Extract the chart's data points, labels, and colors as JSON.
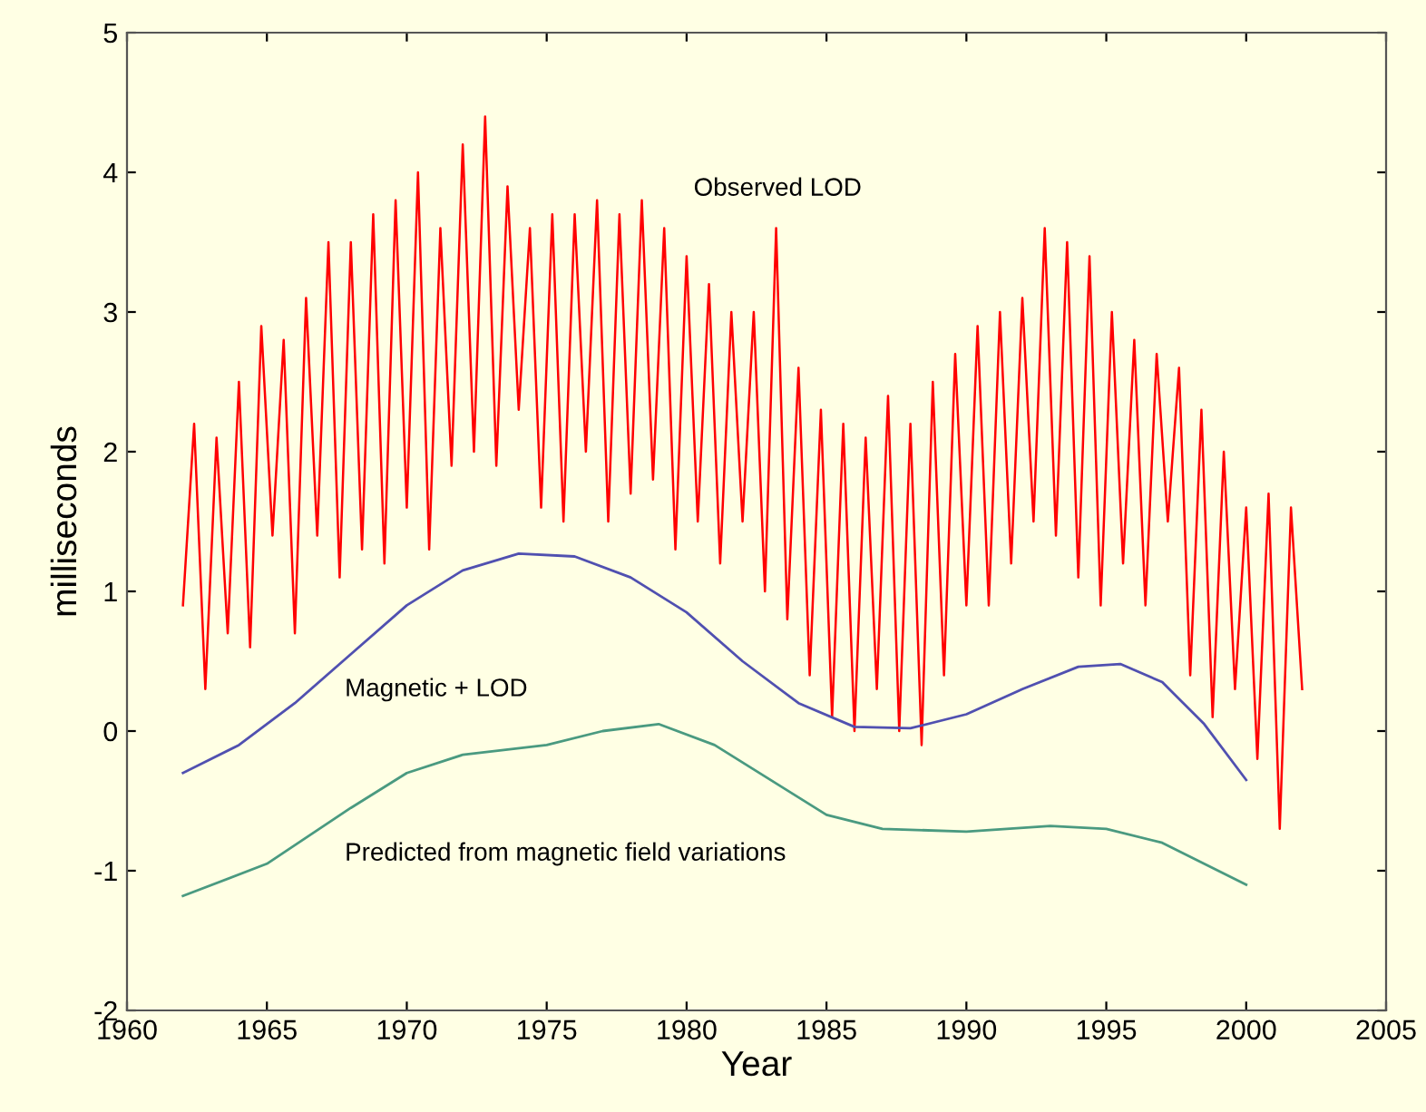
{
  "chart_data": {
    "type": "line",
    "xlabel": "Year",
    "ylabel": "milliseconds",
    "xlim": [
      1960,
      2005
    ],
    "xticks": [
      1960,
      1965,
      1970,
      1975,
      1980,
      1985,
      1990,
      1995,
      2000,
      2005
    ],
    "ylim": [
      -2,
      5
    ],
    "yticks": [
      -2,
      -1,
      0,
      1,
      2,
      3,
      4,
      5
    ],
    "grid": false,
    "legend": false,
    "series": [
      {
        "name": "Observed LOD",
        "color": "#ff0000",
        "x": [
          1962.0,
          1962.4,
          1962.8,
          1963.2,
          1963.6,
          1964.0,
          1964.4,
          1964.8,
          1965.2,
          1965.6,
          1966.0,
          1966.4,
          1966.8,
          1967.2,
          1967.6,
          1968.0,
          1968.4,
          1968.8,
          1969.2,
          1969.6,
          1970.0,
          1970.4,
          1970.8,
          1971.2,
          1971.6,
          1972.0,
          1972.4,
          1972.8,
          1973.2,
          1973.6,
          1974.0,
          1974.4,
          1974.8,
          1975.2,
          1975.6,
          1976.0,
          1976.4,
          1976.8,
          1977.2,
          1977.6,
          1978.0,
          1978.4,
          1978.8,
          1979.2,
          1979.6,
          1980.0,
          1980.4,
          1980.8,
          1981.2,
          1981.6,
          1982.0,
          1982.4,
          1982.8,
          1983.2,
          1983.6,
          1984.0,
          1984.4,
          1984.8,
          1985.2,
          1985.6,
          1986.0,
          1986.4,
          1986.8,
          1987.2,
          1987.6,
          1988.0,
          1988.4,
          1988.8,
          1989.2,
          1989.6,
          1990.0,
          1990.4,
          1990.8,
          1991.2,
          1991.6,
          1992.0,
          1992.4,
          1992.8,
          1993.2,
          1993.6,
          1994.0,
          1994.4,
          1994.8,
          1995.2,
          1995.6,
          1996.0,
          1996.4,
          1996.8,
          1997.2,
          1997.6,
          1998.0,
          1998.4,
          1998.8,
          1999.2,
          1999.6,
          2000.0,
          2000.4,
          2000.8,
          2001.2,
          2001.6,
          2002.0
        ],
        "values": [
          0.9,
          2.2,
          0.3,
          2.1,
          0.7,
          2.5,
          0.6,
          2.9,
          1.4,
          2.8,
          0.7,
          3.1,
          1.4,
          3.5,
          1.1,
          3.5,
          1.3,
          3.7,
          1.2,
          3.8,
          1.6,
          4.0,
          1.3,
          3.6,
          1.9,
          4.2,
          2.0,
          4.4,
          1.9,
          3.9,
          2.3,
          3.6,
          1.6,
          3.7,
          1.5,
          3.7,
          2.0,
          3.8,
          1.5,
          3.7,
          1.7,
          3.8,
          1.8,
          3.6,
          1.3,
          3.4,
          1.5,
          3.2,
          1.2,
          3.0,
          1.5,
          3.0,
          1.0,
          3.6,
          0.8,
          2.6,
          0.4,
          2.3,
          0.1,
          2.2,
          0.0,
          2.1,
          0.3,
          2.4,
          0.0,
          2.2,
          -0.1,
          2.5,
          0.4,
          2.7,
          0.9,
          2.9,
          0.9,
          3.0,
          1.2,
          3.1,
          1.5,
          3.6,
          1.4,
          3.5,
          1.1,
          3.4,
          0.9,
          3.0,
          1.2,
          2.8,
          0.9,
          2.7,
          1.5,
          2.6,
          0.4,
          2.3,
          0.1,
          2.0,
          0.3,
          1.6,
          -0.2,
          1.7,
          -0.7,
          1.6,
          0.3
        ]
      },
      {
        "name": "Magnetic + LOD",
        "color": "#5050b0",
        "x": [
          1962,
          1964,
          1966,
          1968,
          1970,
          1972,
          1974,
          1976,
          1978,
          1980,
          1982,
          1984,
          1986,
          1988,
          1990,
          1992,
          1994,
          1995.5,
          1997,
          1998.5,
          2000
        ],
        "values": [
          -0.3,
          -0.1,
          0.2,
          0.55,
          0.9,
          1.15,
          1.27,
          1.25,
          1.1,
          0.85,
          0.5,
          0.2,
          0.03,
          0.02,
          0.12,
          0.3,
          0.46,
          0.48,
          0.35,
          0.05,
          -0.35
        ]
      },
      {
        "name": "Predicted from magnetic field variations",
        "color": "#4a9a80",
        "x": [
          1962,
          1965,
          1968,
          1970,
          1972,
          1975,
          1977,
          1979,
          1981,
          1983,
          1985,
          1987,
          1990,
          1993,
          1995,
          1997,
          2000
        ],
        "values": [
          -1.18,
          -0.95,
          -0.55,
          -0.3,
          -0.17,
          -0.1,
          0.0,
          0.05,
          -0.1,
          -0.35,
          -0.6,
          -0.7,
          -0.72,
          -0.68,
          -0.7,
          -0.8,
          -1.1
        ]
      }
    ]
  }
}
